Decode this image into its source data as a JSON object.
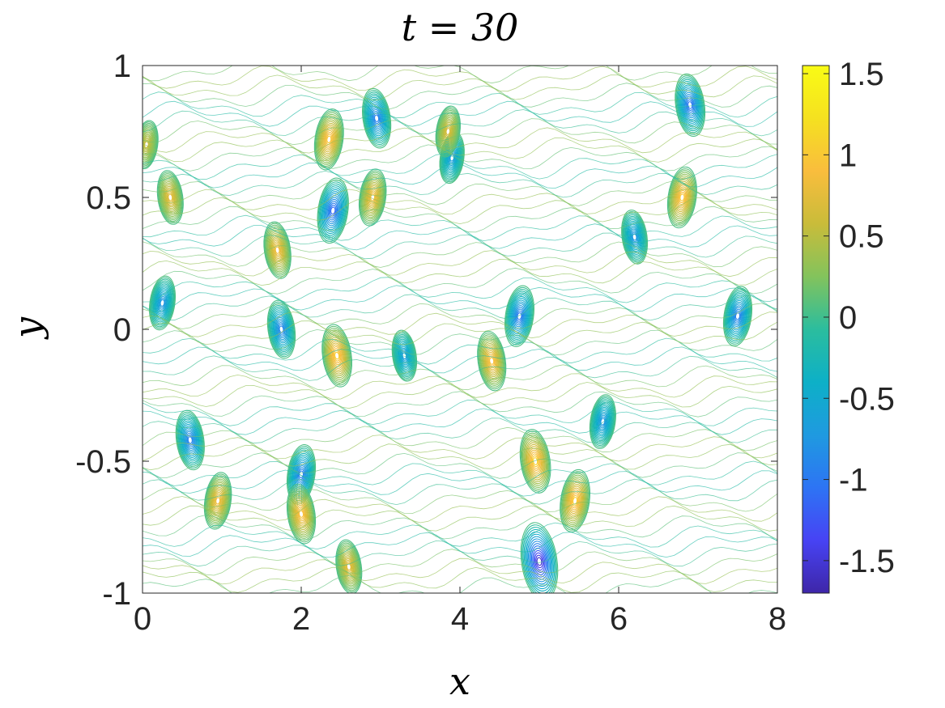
{
  "chart_data": {
    "type": "heatmap",
    "subtype": "contour",
    "title": "t = 30",
    "xlabel": "x",
    "ylabel": "y",
    "xlim": [
      0,
      8
    ],
    "ylim": [
      -1,
      1
    ],
    "x_ticks": [
      0,
      2,
      4,
      6,
      8
    ],
    "x_tick_labels": [
      "0",
      "2",
      "4",
      "6",
      "8"
    ],
    "y_ticks": [
      -1,
      -0.5,
      0,
      0.5,
      1
    ],
    "y_tick_labels": [
      "-1",
      "-0.5",
      "0",
      "0.5",
      "1"
    ],
    "colorbar": {
      "position": "right",
      "colormap": "parula",
      "clim": [
        -1.7,
        1.55
      ],
      "ticks": [
        -1.5,
        -1,
        -0.5,
        0,
        0.5,
        1,
        1.5
      ],
      "tick_labels": [
        "-1.5",
        "-1",
        "-0.5",
        "0",
        "0.5",
        "1",
        "1.5"
      ],
      "colors": [
        "#3e26a8",
        "#4743f4",
        "#2d74f4",
        "#1f9ae0",
        "#0db0c7",
        "#2bbd9e",
        "#83c35c",
        "#c9bc3a",
        "#f9bd3d",
        "#f5e120",
        "#f9fb15"
      ]
    },
    "grid": false,
    "features": [
      {
        "x": 5.0,
        "y": -0.88,
        "value": -1.65
      },
      {
        "x": 2.4,
        "y": 0.45,
        "value": -1.2
      },
      {
        "x": 2.95,
        "y": 0.8,
        "value": -1.0
      },
      {
        "x": 4.75,
        "y": 0.05,
        "value": -1.05
      },
      {
        "x": 0.6,
        "y": -0.42,
        "value": -1.0
      },
      {
        "x": 2.0,
        "y": -0.55,
        "value": -1.0
      },
      {
        "x": 6.9,
        "y": 0.85,
        "value": -1.1
      },
      {
        "x": 7.5,
        "y": 0.05,
        "value": -1.0
      },
      {
        "x": 1.75,
        "y": 0.0,
        "value": -0.95
      },
      {
        "x": 0.25,
        "y": 0.1,
        "value": -0.8
      },
      {
        "x": 3.3,
        "y": -0.1,
        "value": -0.7
      },
      {
        "x": 5.8,
        "y": -0.35,
        "value": -0.8
      },
      {
        "x": 6.2,
        "y": 0.35,
        "value": -0.8
      },
      {
        "x": 3.9,
        "y": 0.65,
        "value": -0.7
      },
      {
        "x": 2.45,
        "y": -0.1,
        "value": 1.1
      },
      {
        "x": 2.35,
        "y": 0.72,
        "value": 1.05
      },
      {
        "x": 1.7,
        "y": 0.3,
        "value": 0.9
      },
      {
        "x": 6.8,
        "y": 0.5,
        "value": 1.05
      },
      {
        "x": 4.95,
        "y": -0.5,
        "value": 1.15
      },
      {
        "x": 5.45,
        "y": -0.65,
        "value": 1.1
      },
      {
        "x": 4.4,
        "y": -0.12,
        "value": 1.0
      },
      {
        "x": 2.9,
        "y": 0.5,
        "value": 0.9
      },
      {
        "x": 2.0,
        "y": -0.7,
        "value": 1.0
      },
      {
        "x": 0.95,
        "y": -0.65,
        "value": 0.9
      },
      {
        "x": 0.35,
        "y": 0.5,
        "value": 0.8
      },
      {
        "x": 3.85,
        "y": 0.75,
        "value": 0.7
      },
      {
        "x": 2.6,
        "y": -0.9,
        "value": 0.8
      },
      {
        "x": 0.05,
        "y": 0.7,
        "value": 0.6
      }
    ]
  }
}
